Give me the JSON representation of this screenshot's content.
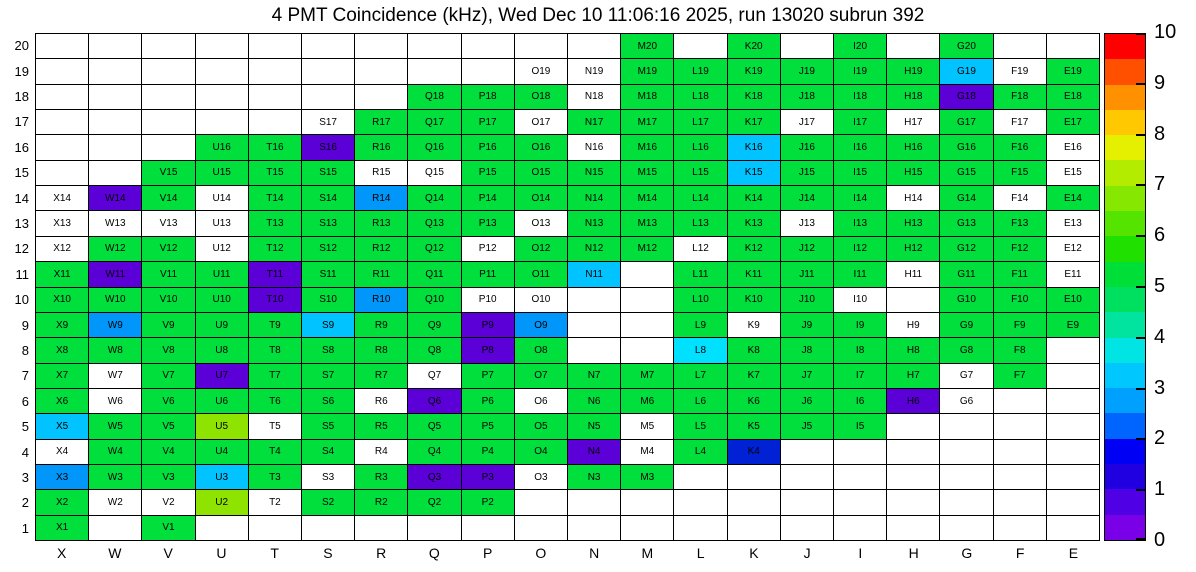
{
  "chart_data": {
    "type": "heatmap",
    "title": "4 PMT Coincidence (kHz), Wed Dec 10 11:06:16 2025, run 13020 subrun 392",
    "unit": "kHz",
    "legend_position": "right",
    "grid": "on",
    "columns": [
      "X",
      "W",
      "V",
      "U",
      "T",
      "S",
      "R",
      "Q",
      "P",
      "O",
      "N",
      "M",
      "L",
      "K",
      "J",
      "I",
      "H",
      "G",
      "F",
      "E"
    ],
    "row_labels": [
      20,
      19,
      18,
      17,
      16,
      15,
      14,
      13,
      12,
      11,
      10,
      9,
      8,
      7,
      6,
      5,
      4,
      3,
      2,
      1
    ],
    "palette": {
      "g": {
        "hex": "#00DF3C",
        "approx_kHz": 5.0
      },
      "yg": {
        "hex": "#8EE400",
        "approx_kHz": 6.3
      },
      "c": {
        "hex": "#00C3FF",
        "approx_kHz": 2.9
      },
      "lc": {
        "hex": "#00E1FF",
        "approx_kHz": 3.3
      },
      "b": {
        "hex": "#0096FA",
        "approx_kHz": 2.2
      },
      "db": {
        "hex": "#0022D4",
        "approx_kHz": 1.3
      },
      "v": {
        "hex": "#5C00D8",
        "approx_kHz": 0.7
      },
      "w": {
        "hex": "#FFFFFF",
        "approx_kHz": null
      }
    },
    "rows": [
      {
        "row": 20,
        "cells": [
          null,
          null,
          null,
          null,
          null,
          null,
          null,
          null,
          null,
          null,
          null,
          "g",
          null,
          "g",
          null,
          "g",
          null,
          "g",
          null,
          null
        ]
      },
      {
        "row": 19,
        "cells": [
          null,
          null,
          null,
          null,
          null,
          null,
          null,
          null,
          null,
          "w",
          "w",
          "g",
          "g",
          "g",
          "g",
          "g",
          "g",
          "c",
          "w",
          "g"
        ]
      },
      {
        "row": 18,
        "cells": [
          null,
          null,
          null,
          null,
          null,
          null,
          null,
          "g",
          "g",
          "g",
          "w",
          "g",
          "g",
          "g",
          "g",
          "g",
          "g",
          "v",
          "g",
          "g"
        ]
      },
      {
        "row": 17,
        "cells": [
          null,
          null,
          null,
          null,
          null,
          "w",
          "g",
          "g",
          "g",
          "w",
          "g",
          "g",
          "g",
          "g",
          "w",
          "g",
          "w",
          "g",
          "w",
          "g"
        ]
      },
      {
        "row": 16,
        "cells": [
          null,
          null,
          null,
          "g",
          "g",
          "v",
          "g",
          "g",
          "g",
          "g",
          "w",
          "g",
          "g",
          "c",
          "g",
          "g",
          "g",
          "g",
          "g",
          "w"
        ]
      },
      {
        "row": 15,
        "cells": [
          null,
          null,
          "g",
          "g",
          "g",
          "g",
          "w",
          "w",
          "g",
          "g",
          "g",
          "g",
          "g",
          "c",
          "g",
          "g",
          "g",
          "g",
          "g",
          "w"
        ]
      },
      {
        "row": 14,
        "cells": [
          "w",
          "v",
          "g",
          "w",
          "g",
          "g",
          "b",
          "g",
          "g",
          "g",
          "g",
          "g",
          "g",
          "g",
          "g",
          "g",
          "w",
          "g",
          "w",
          "g"
        ]
      },
      {
        "row": 13,
        "cells": [
          "w",
          "w",
          "w",
          "w",
          "g",
          "g",
          "g",
          "g",
          "g",
          "w",
          "g",
          "g",
          "g",
          "g",
          "w",
          "g",
          "g",
          "g",
          "g",
          "w"
        ]
      },
      {
        "row": 12,
        "cells": [
          "w",
          "g",
          "g",
          "w",
          "g",
          "g",
          "g",
          "g",
          "w",
          "g",
          "g",
          "g",
          "w",
          "g",
          "g",
          "g",
          "g",
          "g",
          "g",
          "w"
        ]
      },
      {
        "row": 11,
        "cells": [
          "g",
          "v",
          "g",
          "g",
          "v",
          "g",
          "g",
          "g",
          "g",
          "g",
          "c",
          null,
          "g",
          "g",
          "g",
          "g",
          "w",
          "g",
          "g",
          "w"
        ]
      },
      {
        "row": 10,
        "cells": [
          "g",
          "g",
          "g",
          "g",
          "v",
          "g",
          "b",
          "g",
          "w",
          "w",
          null,
          null,
          "g",
          "g",
          "g",
          "w",
          null,
          "g",
          "g",
          "g"
        ]
      },
      {
        "row": 9,
        "cells": [
          "g",
          "b",
          "g",
          "g",
          "g",
          "c",
          "g",
          "g",
          "v",
          "b",
          null,
          null,
          "g",
          "w",
          "g",
          "g",
          "w",
          "g",
          "g",
          "g"
        ]
      },
      {
        "row": 8,
        "cells": [
          "g",
          "g",
          "g",
          "g",
          "g",
          "g",
          "g",
          "g",
          "v",
          "g",
          null,
          null,
          "lc",
          "g",
          "g",
          "g",
          "g",
          "g",
          "g",
          null
        ]
      },
      {
        "row": 7,
        "cells": [
          "g",
          "w",
          "g",
          "v",
          "g",
          "g",
          "g",
          "w",
          "g",
          "g",
          "g",
          "g",
          "g",
          "g",
          "g",
          "g",
          "g",
          "w",
          "g",
          null
        ]
      },
      {
        "row": 6,
        "cells": [
          "g",
          "w",
          "g",
          "g",
          "g",
          "g",
          "w",
          "v",
          "g",
          "w",
          "g",
          "g",
          "g",
          "g",
          "g",
          "g",
          "v",
          "w",
          null,
          null
        ]
      },
      {
        "row": 5,
        "cells": [
          "c",
          "g",
          "g",
          "yg",
          "w",
          "g",
          "g",
          "g",
          "g",
          "g",
          "g",
          "w",
          "g",
          "g",
          "g",
          "g",
          null,
          null,
          null,
          null
        ]
      },
      {
        "row": 4,
        "cells": [
          "w",
          "g",
          "g",
          "g",
          "g",
          "g",
          "w",
          "g",
          "g",
          "g",
          "v",
          "w",
          "g",
          "db",
          null,
          null,
          null,
          null,
          null,
          null
        ]
      },
      {
        "row": 3,
        "cells": [
          "b",
          "g",
          "g",
          "c",
          "g",
          "w",
          "g",
          "v",
          "v",
          "w",
          "g",
          "g",
          null,
          null,
          null,
          null,
          null,
          null,
          null,
          null
        ]
      },
      {
        "row": 2,
        "cells": [
          "g",
          "w",
          "w",
          "yg",
          "w",
          "g",
          "g",
          "g",
          "g",
          null,
          null,
          null,
          null,
          null,
          null,
          null,
          null,
          null,
          null,
          null
        ]
      },
      {
        "row": 1,
        "cells": [
          "g",
          null,
          "g",
          null,
          null,
          null,
          null,
          null,
          null,
          null,
          null,
          null,
          null,
          null,
          null,
          null,
          null,
          null,
          null,
          null
        ]
      }
    ],
    "colorbar": {
      "min": 0,
      "max": 10,
      "ticks": [
        0,
        1,
        2,
        3,
        4,
        5,
        6,
        7,
        8,
        9,
        10
      ],
      "segments_bottom_to_top": [
        "#7A00E8",
        "#5000E4",
        "#2000E0",
        "#0000F5",
        "#0064FF",
        "#00A0FF",
        "#00C8FF",
        "#00E4E4",
        "#00E4A0",
        "#00E060",
        "#00DF37",
        "#20E000",
        "#55E400",
        "#86E800",
        "#B4EC00",
        "#E4F000",
        "#FFC800",
        "#FF9000",
        "#FF5000",
        "#FF0000"
      ]
    }
  }
}
